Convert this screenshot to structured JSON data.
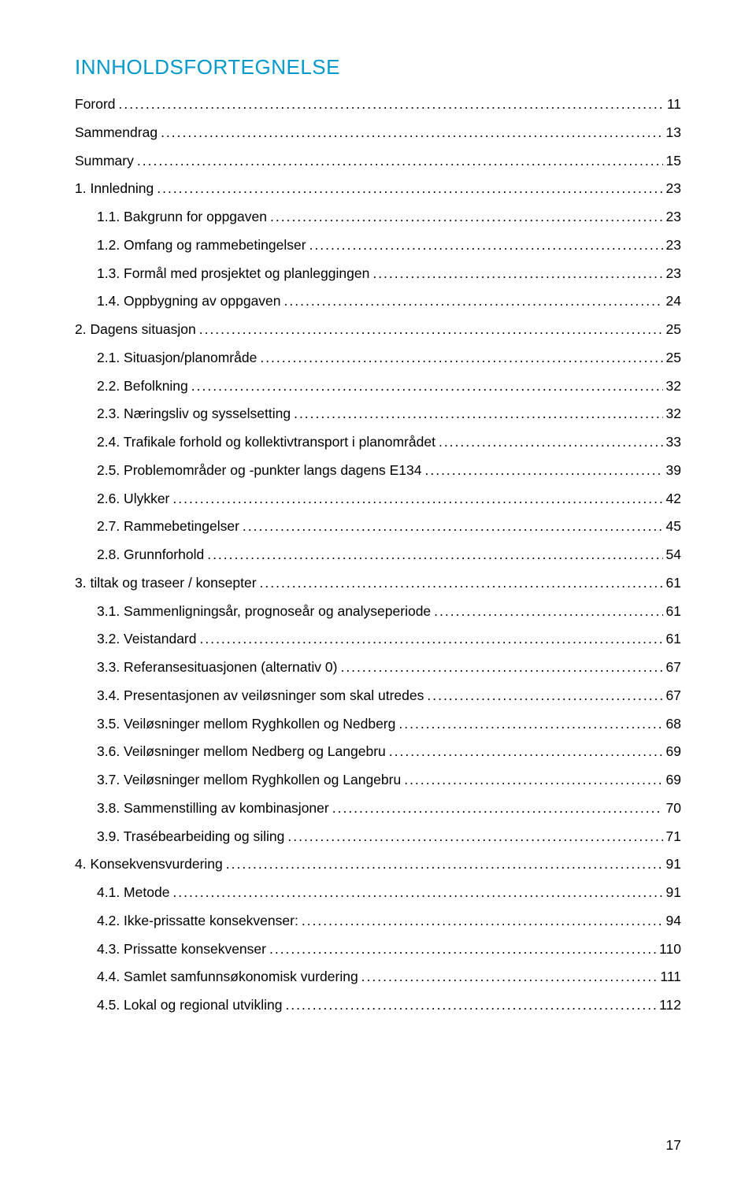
{
  "title": "INNHOLDSFORTEGNELSE",
  "entries": [
    {
      "level": 0,
      "label": "Forord",
      "page": "11"
    },
    {
      "level": 0,
      "label": "Sammendrag",
      "page": "13"
    },
    {
      "level": 0,
      "label": "Summary",
      "page": "15"
    },
    {
      "level": 0,
      "label": "1.    Innledning",
      "page": "23"
    },
    {
      "level": 1,
      "label": "1.1.   Bakgrunn for oppgaven",
      "page": "23"
    },
    {
      "level": 1,
      "label": "1.2.   Omfang og rammebetingelser",
      "page": "23"
    },
    {
      "level": 1,
      "label": "1.3.   Formål med prosjektet og planleggingen",
      "page": "23"
    },
    {
      "level": 1,
      "label": "1.4.   Oppbygning av oppgaven",
      "page": "24"
    },
    {
      "level": 0,
      "label": "2.    Dagens situasjon",
      "page": "25"
    },
    {
      "level": 1,
      "label": "2.1.   Situasjon/planområde",
      "page": "25"
    },
    {
      "level": 1,
      "label": "2.2.   Befolkning",
      "page": "32"
    },
    {
      "level": 1,
      "label": "2.3.   Næringsliv og sysselsetting",
      "page": "32"
    },
    {
      "level": 1,
      "label": "2.4.   Trafikale forhold og kollektivtransport i planområdet",
      "page": "33"
    },
    {
      "level": 1,
      "label": "2.5.   Problemområder og -punkter langs dagens E134",
      "page": "39"
    },
    {
      "level": 1,
      "label": "2.6.   Ulykker",
      "page": "42"
    },
    {
      "level": 1,
      "label": "2.7.   Rammebetingelser",
      "page": "45"
    },
    {
      "level": 1,
      "label": "2.8.   Grunnforhold",
      "page": "54"
    },
    {
      "level": 0,
      "label": "3.    tiltak og traseer / konsepter",
      "page": "61"
    },
    {
      "level": 1,
      "label": "3.1.   Sammenligningsår, prognoseår og analyseperiode",
      "page": "61"
    },
    {
      "level": 1,
      "label": "3.2.   Veistandard",
      "page": "61"
    },
    {
      "level": 1,
      "label": "3.3.   Referansesituasjonen (alternativ 0)",
      "page": "67"
    },
    {
      "level": 1,
      "label": "3.4.   Presentasjonen av veiløsninger som skal utredes",
      "page": "67"
    },
    {
      "level": 1,
      "label": "3.5.   Veiløsninger mellom Ryghkollen og Nedberg",
      "page": "68"
    },
    {
      "level": 1,
      "label": "3.6.   Veiløsninger mellom Nedberg og Langebru",
      "page": "69"
    },
    {
      "level": 1,
      "label": "3.7.   Veiløsninger mellom Ryghkollen og Langebru",
      "page": "69"
    },
    {
      "level": 1,
      "label": "3.8.   Sammenstilling av kombinasjoner",
      "page": "70"
    },
    {
      "level": 1,
      "label": "3.9.   Trasébearbeiding og siling",
      "page": "71"
    },
    {
      "level": 0,
      "label": "4.    Konsekvensvurdering",
      "page": "91"
    },
    {
      "level": 1,
      "label": "4.1.   Metode",
      "page": "91"
    },
    {
      "level": 1,
      "label": "4.2.   Ikke-prissatte konsekvenser:",
      "page": "94"
    },
    {
      "level": 1,
      "label": "4.3.   Prissatte konsekvenser",
      "page": "110"
    },
    {
      "level": 1,
      "label": "4.4.   Samlet samfunnsøkonomisk vurdering",
      "page": "111"
    },
    {
      "level": 1,
      "label": "4.5.   Lokal og regional utvikling",
      "page": "112"
    }
  ],
  "pageNumber": "17",
  "colors": {
    "title": "#0099cc",
    "text": "#000000",
    "background": "#ffffff"
  },
  "typography": {
    "titleFontSize": 26,
    "bodyFontSize": 17.5,
    "fontFamily": "Arial"
  }
}
